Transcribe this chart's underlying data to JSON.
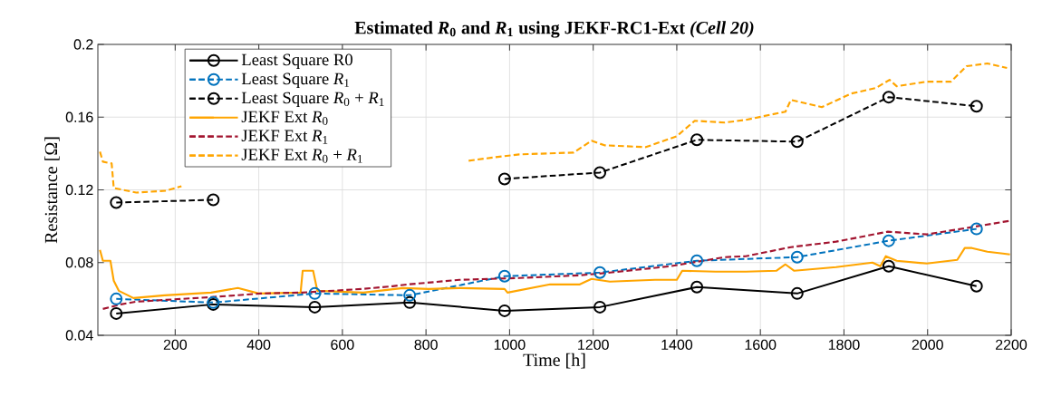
{
  "chart_data": {
    "type": "line",
    "title": "Estimated *R*$_{0}$ and *R*$_{1}$ using JEKF-RC1-Ext *(Cell 20)*",
    "xlabel": "Time [h]",
    "ylabel": "Resistance [Ω]",
    "xlim": [
      15,
      2200
    ],
    "ylim": [
      0.04,
      0.2
    ],
    "xticks": [
      200,
      400,
      600,
      800,
      1000,
      1200,
      1400,
      1600,
      1800,
      2000,
      2200
    ],
    "yticks": [
      0.04,
      0.08,
      0.12,
      0.16,
      0.2
    ],
    "grid": true,
    "legend": "top left",
    "series": [
      {
        "name": "Least Square R0",
        "color": "#000000",
        "marker": "circle",
        "line_style": "solid",
        "x": [
          59,
          291,
          534,
          761,
          988,
          1216,
          1448,
          1688,
          1907,
          2117
        ],
        "values": [
          0.052,
          0.057,
          0.0555,
          0.058,
          0.0535,
          0.0555,
          0.0665,
          0.063,
          0.078,
          0.067
        ]
      },
      {
        "name": "Least Square *R*$_{1}$",
        "color": "#0072bd",
        "marker": "circle",
        "line_style": "dashed",
        "x": [
          59,
          291,
          534,
          761,
          988,
          1216,
          1448,
          1688,
          1907,
          2117
        ],
        "values": [
          0.06,
          0.058,
          0.063,
          0.062,
          0.0725,
          0.0745,
          0.081,
          0.083,
          0.092,
          0.0985
        ]
      },
      {
        "name": "Least Square *R*$_{0}$ + *R*$_{1}$",
        "color": "#000000",
        "marker": "circle",
        "line_style": "dashed",
        "x": [
          59,
          291,
          534,
          761,
          988,
          1216,
          1448,
          1688,
          1907,
          2117
        ],
        "values": [
          0.113,
          0.1145,
          null,
          null,
          0.126,
          0.1295,
          0.1475,
          0.1465,
          0.171,
          0.166
        ]
      },
      {
        "name": "JEKF Ext *R*$_{0}$",
        "color": "#ffa500",
        "marker": "none",
        "line_style": "solid",
        "x": [
          20,
          27,
          45,
          53,
          65,
          100,
          175,
          286,
          350,
          400,
          500,
          505,
          530,
          540,
          650,
          745,
          806,
          880,
          988,
          995,
          1097,
          1168,
          1196,
          1240,
          1348,
          1400,
          1413,
          1493,
          1565,
          1638,
          1660,
          1681,
          1781,
          1868,
          1887,
          1900,
          1926,
          1998,
          2071,
          2089,
          2106,
          2143,
          2180,
          2197
        ],
        "values": [
          0.087,
          0.081,
          0.081,
          0.07,
          0.0645,
          0.0605,
          0.062,
          0.0635,
          0.066,
          0.063,
          0.0635,
          0.0755,
          0.0755,
          0.0645,
          0.0635,
          0.066,
          0.0655,
          0.066,
          0.0655,
          0.0635,
          0.068,
          0.068,
          0.071,
          0.0695,
          0.0705,
          0.0705,
          0.0755,
          0.075,
          0.075,
          0.0755,
          0.079,
          0.0755,
          0.0775,
          0.08,
          0.078,
          0.0835,
          0.081,
          0.0795,
          0.0815,
          0.088,
          0.088,
          0.086,
          0.085,
          0.0845
        ]
      },
      {
        "name": "JEKF Ext *R*$_{1}$",
        "color": "#a2142f",
        "marker": "none",
        "line_style": "dashed",
        "x": [
          27,
          70,
          107,
          178,
          287,
          404,
          503,
          648,
          720,
          757,
          880,
          1023,
          1168,
          1240,
          1385,
          1515,
          1565,
          1673,
          1781,
          1905,
          1998,
          2106,
          2197
        ],
        "values": [
          0.0545,
          0.057,
          0.0585,
          0.0595,
          0.061,
          0.063,
          0.0635,
          0.0655,
          0.067,
          0.068,
          0.0705,
          0.0715,
          0.073,
          0.0745,
          0.078,
          0.083,
          0.0835,
          0.0885,
          0.0915,
          0.097,
          0.0955,
          0.0995,
          0.103
        ]
      },
      {
        "name": "JEKF Ext *R*$_{0}$ + *R*$_{1}$",
        "color": "#ffa500",
        "marker": "none",
        "line_style": "dashed",
        "x": [
          20,
          27,
          48,
          53,
          107,
          178,
          215,
          500,
          902,
          967,
          1023,
          1153,
          1196,
          1227,
          1326,
          1400,
          1443,
          1515,
          1565,
          1660,
          1673,
          1747,
          1818,
          1876,
          1909,
          1926,
          1998,
          2056,
          2093,
          2143,
          2190
        ],
        "values": [
          0.141,
          0.1355,
          0.1345,
          0.121,
          0.1185,
          0.1195,
          0.122,
          null,
          0.136,
          0.138,
          0.1395,
          0.1405,
          0.147,
          0.1445,
          0.1435,
          0.1495,
          0.158,
          0.157,
          0.1585,
          0.163,
          0.1695,
          0.1655,
          0.173,
          0.176,
          0.1805,
          0.177,
          0.1795,
          0.1795,
          0.188,
          0.1895,
          0.187
        ]
      }
    ]
  }
}
